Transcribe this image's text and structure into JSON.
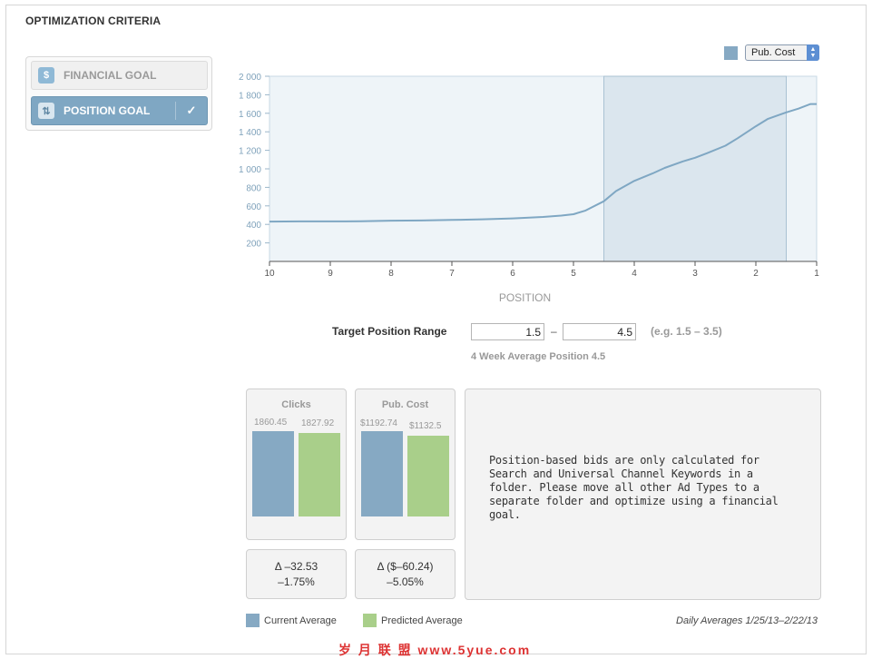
{
  "section_title": "OPTIMIZATION CRITERIA",
  "goals": {
    "financial": {
      "label": "FINANCIAL GOAL",
      "icon": "dollar-sign-icon"
    },
    "position": {
      "label": "POSITION GOAL",
      "icon": "position-arrows-icon",
      "selected": true,
      "check": "✓"
    }
  },
  "metric_select": {
    "value": "Pub. Cost"
  },
  "chart_data": {
    "type": "line",
    "xlabel": "POSITION",
    "ylabel": "",
    "x_ticks": [
      "10",
      "9",
      "8",
      "7",
      "6",
      "5",
      "4",
      "3",
      "2",
      "1"
    ],
    "y_ticks": [
      "2 000",
      "1 800",
      "1 600",
      "1 400",
      "1 200",
      "1 000",
      "800",
      "600",
      "400",
      "200"
    ],
    "xlim": [
      10,
      1
    ],
    "ylim": [
      0,
      2000
    ],
    "highlight_range": [
      4.5,
      1.5
    ],
    "series": [
      {
        "x": [
          10,
          9.5,
          9,
          8.5,
          8,
          7.5,
          7,
          6.5,
          6,
          5.5,
          5.2,
          5,
          4.8,
          4.5,
          4.3,
          4,
          3.7,
          3.5,
          3.2,
          3,
          2.8,
          2.5,
          2.3,
          2,
          1.8,
          1.5,
          1.3,
          1.1,
          1
        ],
        "y": [
          430,
          432,
          432,
          433,
          440,
          442,
          448,
          455,
          465,
          480,
          495,
          510,
          550,
          650,
          760,
          870,
          950,
          1010,
          1080,
          1120,
          1170,
          1250,
          1330,
          1460,
          1540,
          1610,
          1650,
          1700,
          1700
        ]
      }
    ]
  },
  "target_range": {
    "label": "Target Position Range",
    "min": "1.5",
    "max": "4.5",
    "separator": "–",
    "example": "(e.g. 1.5 – 3.5)",
    "average_note": "4 Week Average Position 4.5"
  },
  "clicks": {
    "title": "Clicks",
    "current_value": 1860.45,
    "predicted_value": 1827.92,
    "current_label": "1860.45",
    "predicted_label": "1827.92",
    "delta": "Δ –32.53",
    "delta_pct": "–1.75%"
  },
  "pub_cost": {
    "title": "Pub. Cost",
    "current_value": 1192.74,
    "predicted_value": 1132.5,
    "current_label": "$1192.74",
    "predicted_label": "$1132.5",
    "delta": "Δ ($–60.24)",
    "delta_pct": "–5.05%"
  },
  "info_message": "Position-based bids are only calculated for Search and Universal Channel Keywords in a folder. Please move all other Ad Types to a separate folder and optimize using a financial goal.",
  "legend": {
    "current": "Current Average",
    "predicted": "Predicted Average",
    "daily": "Daily Averages 1/25/13–2/22/13"
  },
  "colors": {
    "current": "#86a9c3",
    "predicted": "#a9cf8a",
    "line": "#7fa7c3",
    "highlight": "#dbe6ee"
  },
  "watermark": "岁 月 联 盟 www.5yue.com"
}
